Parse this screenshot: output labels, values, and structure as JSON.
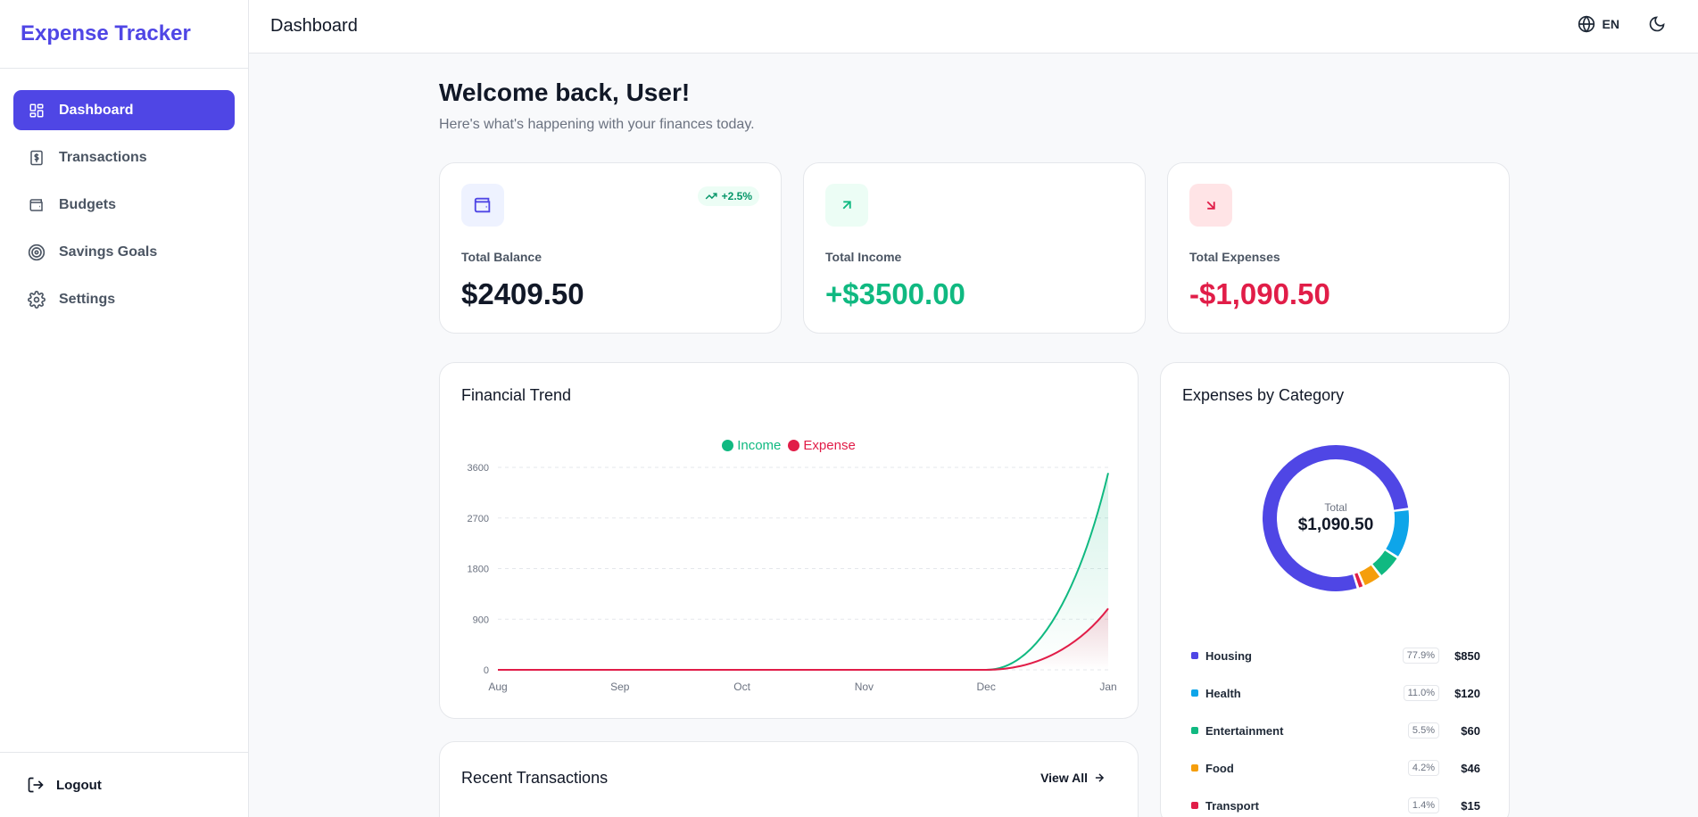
{
  "app": {
    "name": "Expense Tracker"
  },
  "sidebar": {
    "items": [
      {
        "label": "Dashboard",
        "icon": "dashboard-icon",
        "active": true
      },
      {
        "label": "Transactions",
        "icon": "dollar-receipt-icon"
      },
      {
        "label": "Budgets",
        "icon": "wallet-icon"
      },
      {
        "label": "Savings Goals",
        "icon": "target-icon"
      },
      {
        "label": "Settings",
        "icon": "gear-icon"
      }
    ],
    "logout_label": "Logout"
  },
  "header": {
    "title": "Dashboard",
    "language": "EN"
  },
  "main": {
    "welcome": "Welcome back, User!",
    "subtitle": "Here's what's happening with your finances today.",
    "stats": [
      {
        "label": "Total Balance",
        "value": "$2409.50",
        "badge": "+2.5%",
        "color": "#111827",
        "icon": "wallet-icon"
      },
      {
        "label": "Total Income",
        "value": "+$3500.00",
        "color": "#10b981",
        "icon": "arrow-up-right-icon"
      },
      {
        "label": "Total Expenses",
        "value": "-$1,090.50",
        "color": "#e11d48",
        "icon": "arrow-down-right-icon"
      }
    ],
    "trend_title": "Financial Trend",
    "category_title": "Expenses by Category",
    "donut_total_label": "Total",
    "donut_total_value": "$1,090.50",
    "recent_title": "Recent Transactions",
    "view_all": "View All"
  },
  "colors": {
    "accent": "#4f46e5",
    "income": "#10b981",
    "expense": "#e11d48"
  },
  "chart_data": [
    {
      "type": "area",
      "categories": [
        "Aug",
        "Sep",
        "Oct",
        "Nov",
        "Dec",
        "Jan"
      ],
      "ylim": [
        0,
        3600
      ],
      "yticks": [
        0,
        900,
        1800,
        2700,
        3600
      ],
      "grid": true,
      "legend_position": "top-center",
      "series": [
        {
          "name": "Income",
          "color": "#10b981",
          "values": [
            0,
            0,
            0,
            0,
            0,
            3500
          ]
        },
        {
          "name": "Expense",
          "color": "#e11d48",
          "values": [
            0,
            0,
            0,
            0,
            0,
            1090.5
          ]
        }
      ]
    },
    {
      "type": "pie",
      "donut": true,
      "slices": [
        {
          "label": "Housing",
          "value": 850,
          "percent": "77.9%",
          "amount": "$850",
          "color": "#4f46e5"
        },
        {
          "label": "Health",
          "value": 120,
          "percent": "11.0%",
          "amount": "$120",
          "color": "#0ea5e9"
        },
        {
          "label": "Entertainment",
          "value": 60,
          "percent": "5.5%",
          "amount": "$60",
          "color": "#10b981"
        },
        {
          "label": "Food",
          "value": 46,
          "percent": "4.2%",
          "amount": "$46",
          "color": "#f59e0b"
        },
        {
          "label": "Transport",
          "value": 15,
          "percent": "1.4%",
          "amount": "$15",
          "color": "#e11d48"
        }
      ]
    }
  ]
}
